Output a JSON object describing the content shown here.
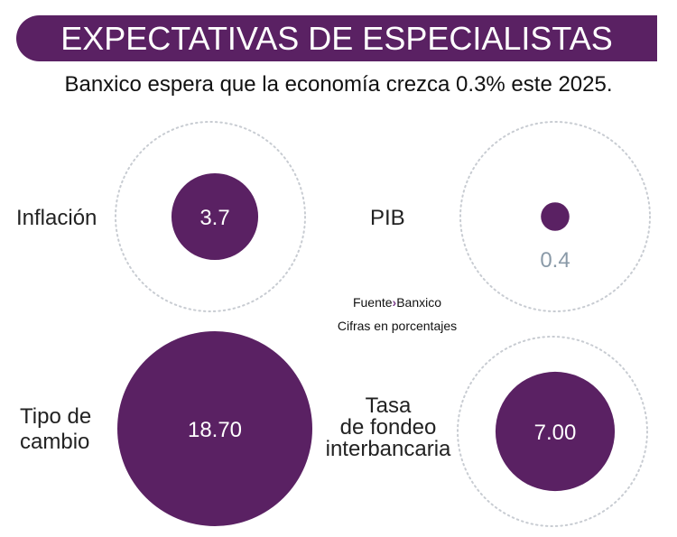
{
  "header": {
    "title": "EXPECTATIVAS DE ESPECIALISTAS",
    "subtitle": "Banxico espera que la economía crezca 0.3% este 2025."
  },
  "source": {
    "label": "Fuente",
    "separator": "›",
    "name": "Banxico",
    "units": "Cifras en porcentajes"
  },
  "colors": {
    "accent": "#5a2163",
    "value_text": "#8a9aa8",
    "outline": "#c8ccd2"
  },
  "chart_data": {
    "type": "bubble",
    "items": [
      {
        "label": "Inflación",
        "label_lines": [
          "Inflación"
        ],
        "value": 3.7,
        "display": "3.7"
      },
      {
        "label": "PIB",
        "label_lines": [
          "PIB"
        ],
        "value": 0.4,
        "display": "0.4"
      },
      {
        "label": "Tipo de cambio",
        "label_lines": [
          "Tipo de",
          "cambio"
        ],
        "value": 18.7,
        "display": "18.70"
      },
      {
        "label": "Tasa de fondeo interbancaria",
        "label_lines": [
          "Tasa",
          "de fondeo",
          "interbancaria"
        ],
        "value": 7.0,
        "display": "7.00"
      }
    ]
  }
}
